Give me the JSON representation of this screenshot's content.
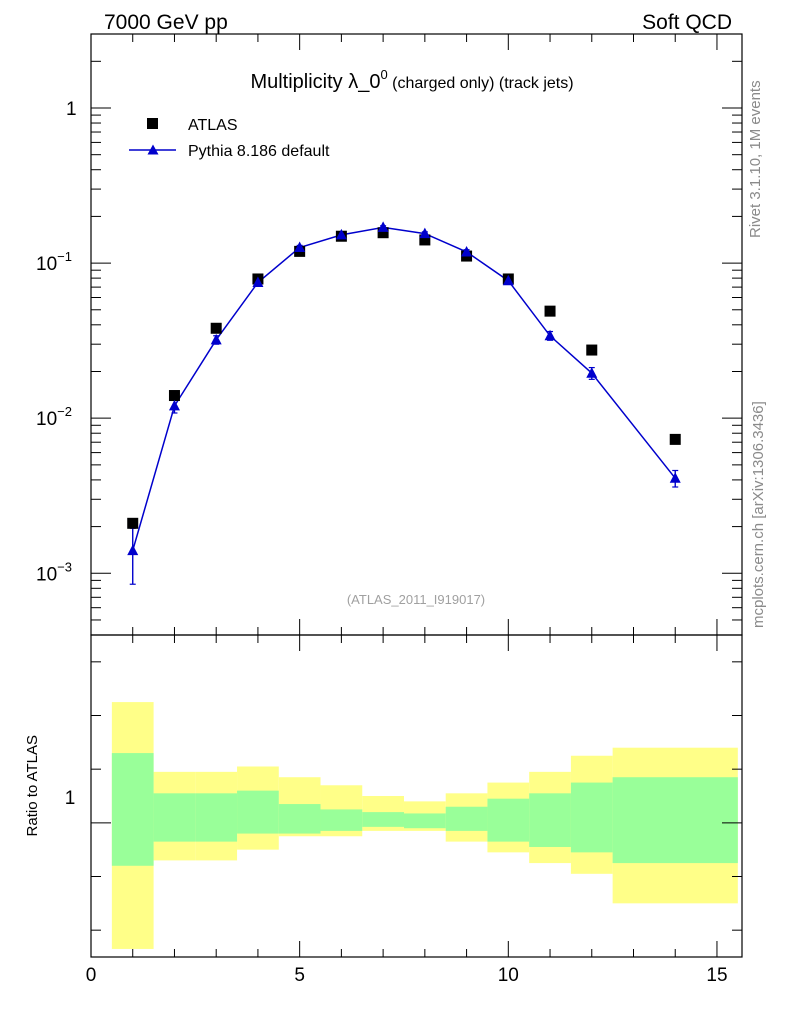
{
  "header": {
    "left": "7000 GeV pp",
    "right": "Soft QCD"
  },
  "title": {
    "main": "Multiplicity λ_0",
    "sup": "0",
    "suffix": " (charged only) (track jets)"
  },
  "side_labels": {
    "rivet": "Rivet 3.1.10,  1M events",
    "ref": "mcplots.cern.ch [arXiv:1306.3436]"
  },
  "watermark": "(ATLAS_2011_I919017)",
  "legend": {
    "data_label": "ATLAS",
    "mc_label": "Pythia 8.186 default"
  },
  "colors": {
    "data": "#000000",
    "mc": "#0000cc",
    "band_inner": "#99ff99",
    "band_outer": "#ffff88"
  },
  "main_axis": {
    "yticks": [
      {
        "base": "10",
        "exp": "−3",
        "value": 0.001
      },
      {
        "base": "10",
        "exp": "−2",
        "value": 0.01
      },
      {
        "base": "10",
        "exp": "−1",
        "value": 0.1
      },
      {
        "base": "1",
        "exp": "",
        "value": 1
      }
    ]
  },
  "ratio_axis": {
    "ylabel": "Ratio to ATLAS",
    "ytick_label": "1"
  },
  "x_axis": {
    "ticks": [
      "0",
      "5",
      "10",
      "15"
    ]
  },
  "chart_data": {
    "type": "scatter",
    "x_range": [
      0,
      15.6
    ],
    "y_scale": "log",
    "y_range": [
      0.0004,
      3
    ],
    "ratio_range": [
      0.5,
      1.7
    ],
    "series": [
      {
        "name": "ATLAS",
        "marker": "square",
        "x": [
          1,
          2,
          3,
          4,
          5,
          6,
          7,
          8,
          9,
          10,
          11,
          12,
          14
        ],
        "y": [
          0.0021,
          0.014,
          0.038,
          0.079,
          0.119,
          0.149,
          0.157,
          0.141,
          0.111,
          0.079,
          0.049,
          0.0275,
          0.0073
        ]
      },
      {
        "name": "Pythia 8.186 default",
        "marker": "triangle",
        "x": [
          1,
          2,
          3,
          4,
          5,
          6,
          7,
          8,
          9,
          10,
          11,
          12,
          14
        ],
        "y": [
          0.0014,
          0.012,
          0.032,
          0.075,
          0.126,
          0.152,
          0.17,
          0.155,
          0.118,
          0.077,
          0.034,
          0.0195,
          0.0041
        ],
        "err_low": [
          0.00055,
          0.0012,
          0.002,
          0.003,
          0.004,
          0.004,
          0.004,
          0.004,
          0.004,
          0.003,
          0.0022,
          0.0017,
          0.0005
        ],
        "err_high": [
          0.00055,
          0.0012,
          0.002,
          0.003,
          0.004,
          0.004,
          0.004,
          0.004,
          0.004,
          0.003,
          0.0022,
          0.0017,
          0.0005
        ]
      }
    ],
    "ratio_bands": [
      {
        "x0": 0.5,
        "x1": 1.5,
        "inner": [
          0.84,
          1.26
        ],
        "outer": [
          0.53,
          1.45
        ]
      },
      {
        "x0": 1.5,
        "x1": 2.5,
        "inner": [
          0.93,
          1.11
        ],
        "outer": [
          0.86,
          1.19
        ]
      },
      {
        "x0": 2.5,
        "x1": 3.5,
        "inner": [
          0.93,
          1.11
        ],
        "outer": [
          0.86,
          1.19
        ]
      },
      {
        "x0": 3.5,
        "x1": 4.5,
        "inner": [
          0.96,
          1.12
        ],
        "outer": [
          0.9,
          1.21
        ]
      },
      {
        "x0": 4.5,
        "x1": 5.5,
        "inner": [
          0.96,
          1.07
        ],
        "outer": [
          0.95,
          1.17
        ]
      },
      {
        "x0": 5.5,
        "x1": 6.5,
        "inner": [
          0.97,
          1.05
        ],
        "outer": [
          0.95,
          1.14
        ]
      },
      {
        "x0": 6.5,
        "x1": 7.5,
        "inner": [
          0.985,
          1.04
        ],
        "outer": [
          0.97,
          1.1
        ]
      },
      {
        "x0": 7.5,
        "x1": 8.5,
        "inner": [
          0.98,
          1.035
        ],
        "outer": [
          0.97,
          1.08
        ]
      },
      {
        "x0": 8.5,
        "x1": 9.5,
        "inner": [
          0.97,
          1.06
        ],
        "outer": [
          0.93,
          1.11
        ]
      },
      {
        "x0": 9.5,
        "x1": 10.5,
        "inner": [
          0.93,
          1.09
        ],
        "outer": [
          0.89,
          1.15
        ]
      },
      {
        "x0": 10.5,
        "x1": 11.5,
        "inner": [
          0.91,
          1.11
        ],
        "outer": [
          0.85,
          1.19
        ]
      },
      {
        "x0": 11.5,
        "x1": 12.5,
        "inner": [
          0.89,
          1.15
        ],
        "outer": [
          0.81,
          1.25
        ]
      },
      {
        "x0": 12.5,
        "x1": 15.5,
        "inner": [
          0.85,
          1.17
        ],
        "outer": [
          0.7,
          1.28
        ]
      }
    ],
    "ratio_line": 1.0
  }
}
